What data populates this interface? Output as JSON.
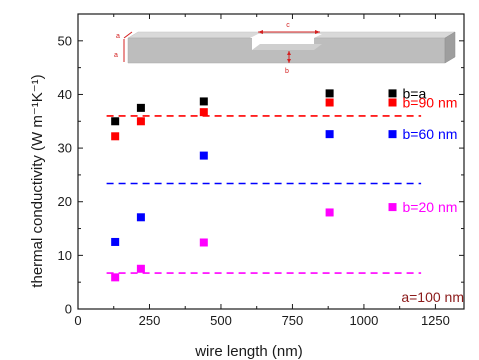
{
  "chart_data": {
    "type": "scatter",
    "title": "",
    "xlabel": "wire length (nm)",
    "ylabel": "thermal conductivity (W m⁻¹K⁻¹)",
    "xlim": [
      0,
      1350
    ],
    "ylim": [
      0,
      55
    ],
    "x_ticks": [
      0,
      250,
      500,
      750,
      1000,
      1250
    ],
    "y_ticks": [
      0,
      10,
      20,
      30,
      40,
      50
    ],
    "grid": false,
    "legend_placement": "right",
    "series": [
      {
        "name": "b=a",
        "color": "#000000",
        "x": [
          130,
          220,
          440,
          880
        ],
        "y": [
          35.0,
          37.5,
          38.7,
          40.2
        ],
        "dashed_level": null
      },
      {
        "name": "b=90 nm",
        "color": "#ff0000",
        "x": [
          130,
          220,
          440,
          880
        ],
        "y": [
          32.2,
          35.0,
          36.7,
          38.5
        ],
        "dashed_level": 36.0
      },
      {
        "name": "b=60 nm",
        "color": "#0000ff",
        "x": [
          130,
          220,
          440,
          880
        ],
        "y": [
          12.5,
          17.1,
          28.6,
          32.6
        ],
        "dashed_level": 23.4
      },
      {
        "name": "b=20 nm",
        "color": "#ff00ff",
        "x": [
          130,
          220,
          440,
          880
        ],
        "y": [
          5.9,
          7.5,
          12.4,
          18.0
        ],
        "dashed_level": 6.7
      }
    ],
    "dashed_line_x_range": [
      100,
      1200
    ],
    "legend_markers": [
      {
        "series": "b=a",
        "x": 1100,
        "y": 40.2
      },
      {
        "series": "b=90 nm",
        "x": 1100,
        "y": 38.5
      },
      {
        "series": "b=60 nm",
        "x": 1100,
        "y": 32.6
      },
      {
        "series": "b=20 nm",
        "x": 1100,
        "y": 19.0
      }
    ],
    "annotation": {
      "text": "a=100 nm",
      "color": "#8b1a1a"
    },
    "inset": {
      "labels": [
        "a",
        "a",
        "c",
        "b"
      ],
      "color": "#d42020"
    }
  }
}
